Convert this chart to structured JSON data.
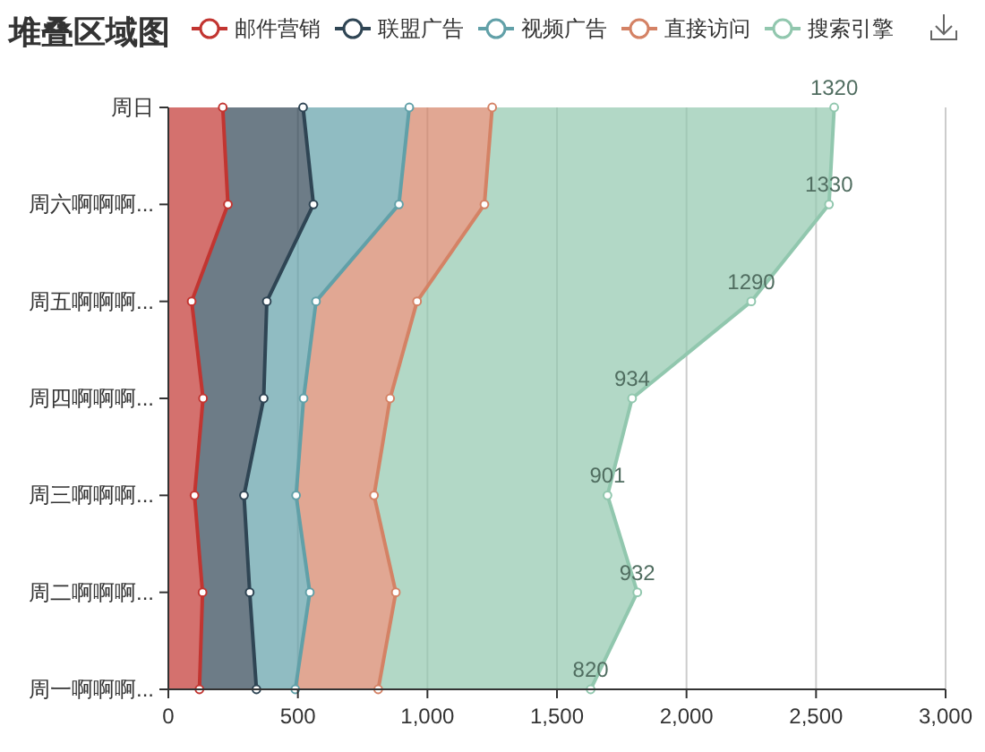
{
  "chart_data": {
    "type": "area",
    "title": "堆叠区域图",
    "orientation": "horizontal",
    "stacked": true,
    "categories": [
      "周日",
      "周六啊啊啊...",
      "周五啊啊啊...",
      "周四啊啊啊...",
      "周三啊啊啊...",
      "周二啊啊啊...",
      "周一啊啊啊..."
    ],
    "series": [
      {
        "name": "邮件营销",
        "color": "#c23531",
        "values": [
          210,
          230,
          90,
          134,
          101,
          132,
          120
        ]
      },
      {
        "name": "联盟广告",
        "color": "#2f4554",
        "values": [
          310,
          330,
          290,
          234,
          191,
          182,
          220
        ]
      },
      {
        "name": "视频广告",
        "color": "#61a0a8",
        "values": [
          410,
          330,
          190,
          154,
          201,
          232,
          150
        ]
      },
      {
        "name": "直接访问",
        "color": "#d48265",
        "values": [
          320,
          330,
          390,
          334,
          301,
          332,
          320
        ]
      },
      {
        "name": "搜索引擎",
        "color": "#91c7ae",
        "values": [
          1320,
          1330,
          1290,
          934,
          901,
          932,
          820
        ],
        "value_labels": [
          "1320",
          "1330",
          "1290",
          "934",
          "901",
          "932",
          "820"
        ]
      }
    ],
    "xlim": [
      0,
      3000
    ],
    "xticks": [
      0,
      500,
      {
        "value": 1000,
        "label": "1,000"
      },
      {
        "value": 1500,
        "label": "1,500"
      },
      {
        "value": 2000,
        "label": "2,000"
      },
      {
        "value": 2500,
        "label": "2,500"
      },
      {
        "value": 3000,
        "label": "3,000"
      }
    ],
    "grid": "x",
    "legend": "top",
    "marker": "circle",
    "line_style": "solid"
  }
}
